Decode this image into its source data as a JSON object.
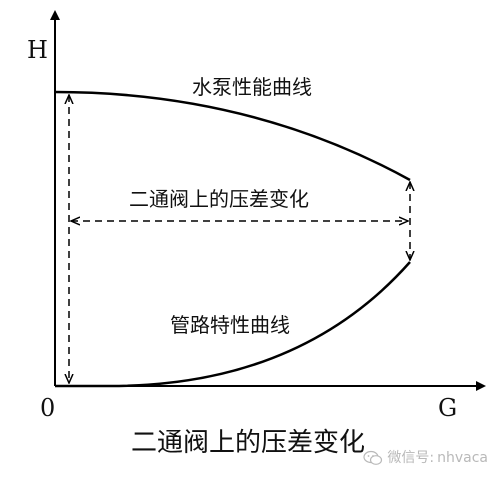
{
  "axes": {
    "y_label": "H",
    "x_label": "G",
    "origin_label": "0"
  },
  "curves": {
    "pump_label": "水泵性能曲线",
    "pipe_label": "管路特性曲线"
  },
  "annotation": {
    "pressure_diff_label": "二通阀上的压差变化"
  },
  "caption": "二通阀上的压差变化",
  "watermark": {
    "prefix": "微信号:",
    "account": "nhvaca",
    "icon": "wechat-icon"
  },
  "colors": {
    "line": "#000000",
    "watermark": "#b9b9b9"
  }
}
